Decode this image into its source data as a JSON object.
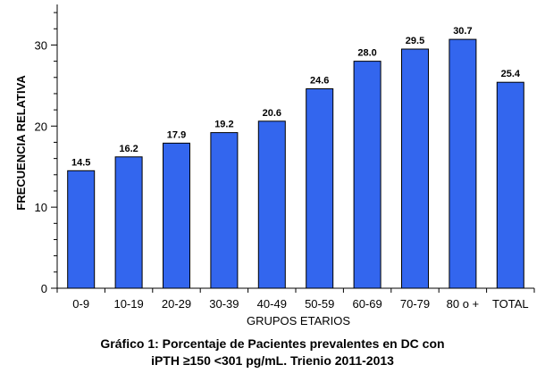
{
  "chart_data": {
    "type": "bar",
    "categories": [
      "0-9",
      "10-19",
      "20-29",
      "30-39",
      "40-49",
      "50-59",
      "60-69",
      "70-79",
      "80 o +",
      "TOTAL"
    ],
    "values": [
      14.5,
      16.2,
      17.9,
      19.2,
      20.6,
      24.6,
      28.0,
      29.5,
      30.7,
      25.4
    ],
    "data_labels": [
      "14.5",
      "16.2",
      "17.9",
      "19.2",
      "20.6",
      "24.6",
      "28.0",
      "29.5",
      "30.7",
      "25.4"
    ],
    "xlabel": "GRUPOS ETARIOS",
    "ylabel": "FRECUENCIA RELATIVA",
    "ylim": [
      0,
      35
    ],
    "yticks": [
      0,
      10,
      20,
      30
    ],
    "grid": false,
    "legend": "none",
    "bar_color": "#3366ee",
    "bar_edge_color": "#000000"
  },
  "caption": {
    "line1": "Gráfico 1: Porcentaje de Pacientes prevalentes en DC con",
    "line2": "iPTH ≥150 <301 pg/mL. Trienio 2011-2013"
  }
}
